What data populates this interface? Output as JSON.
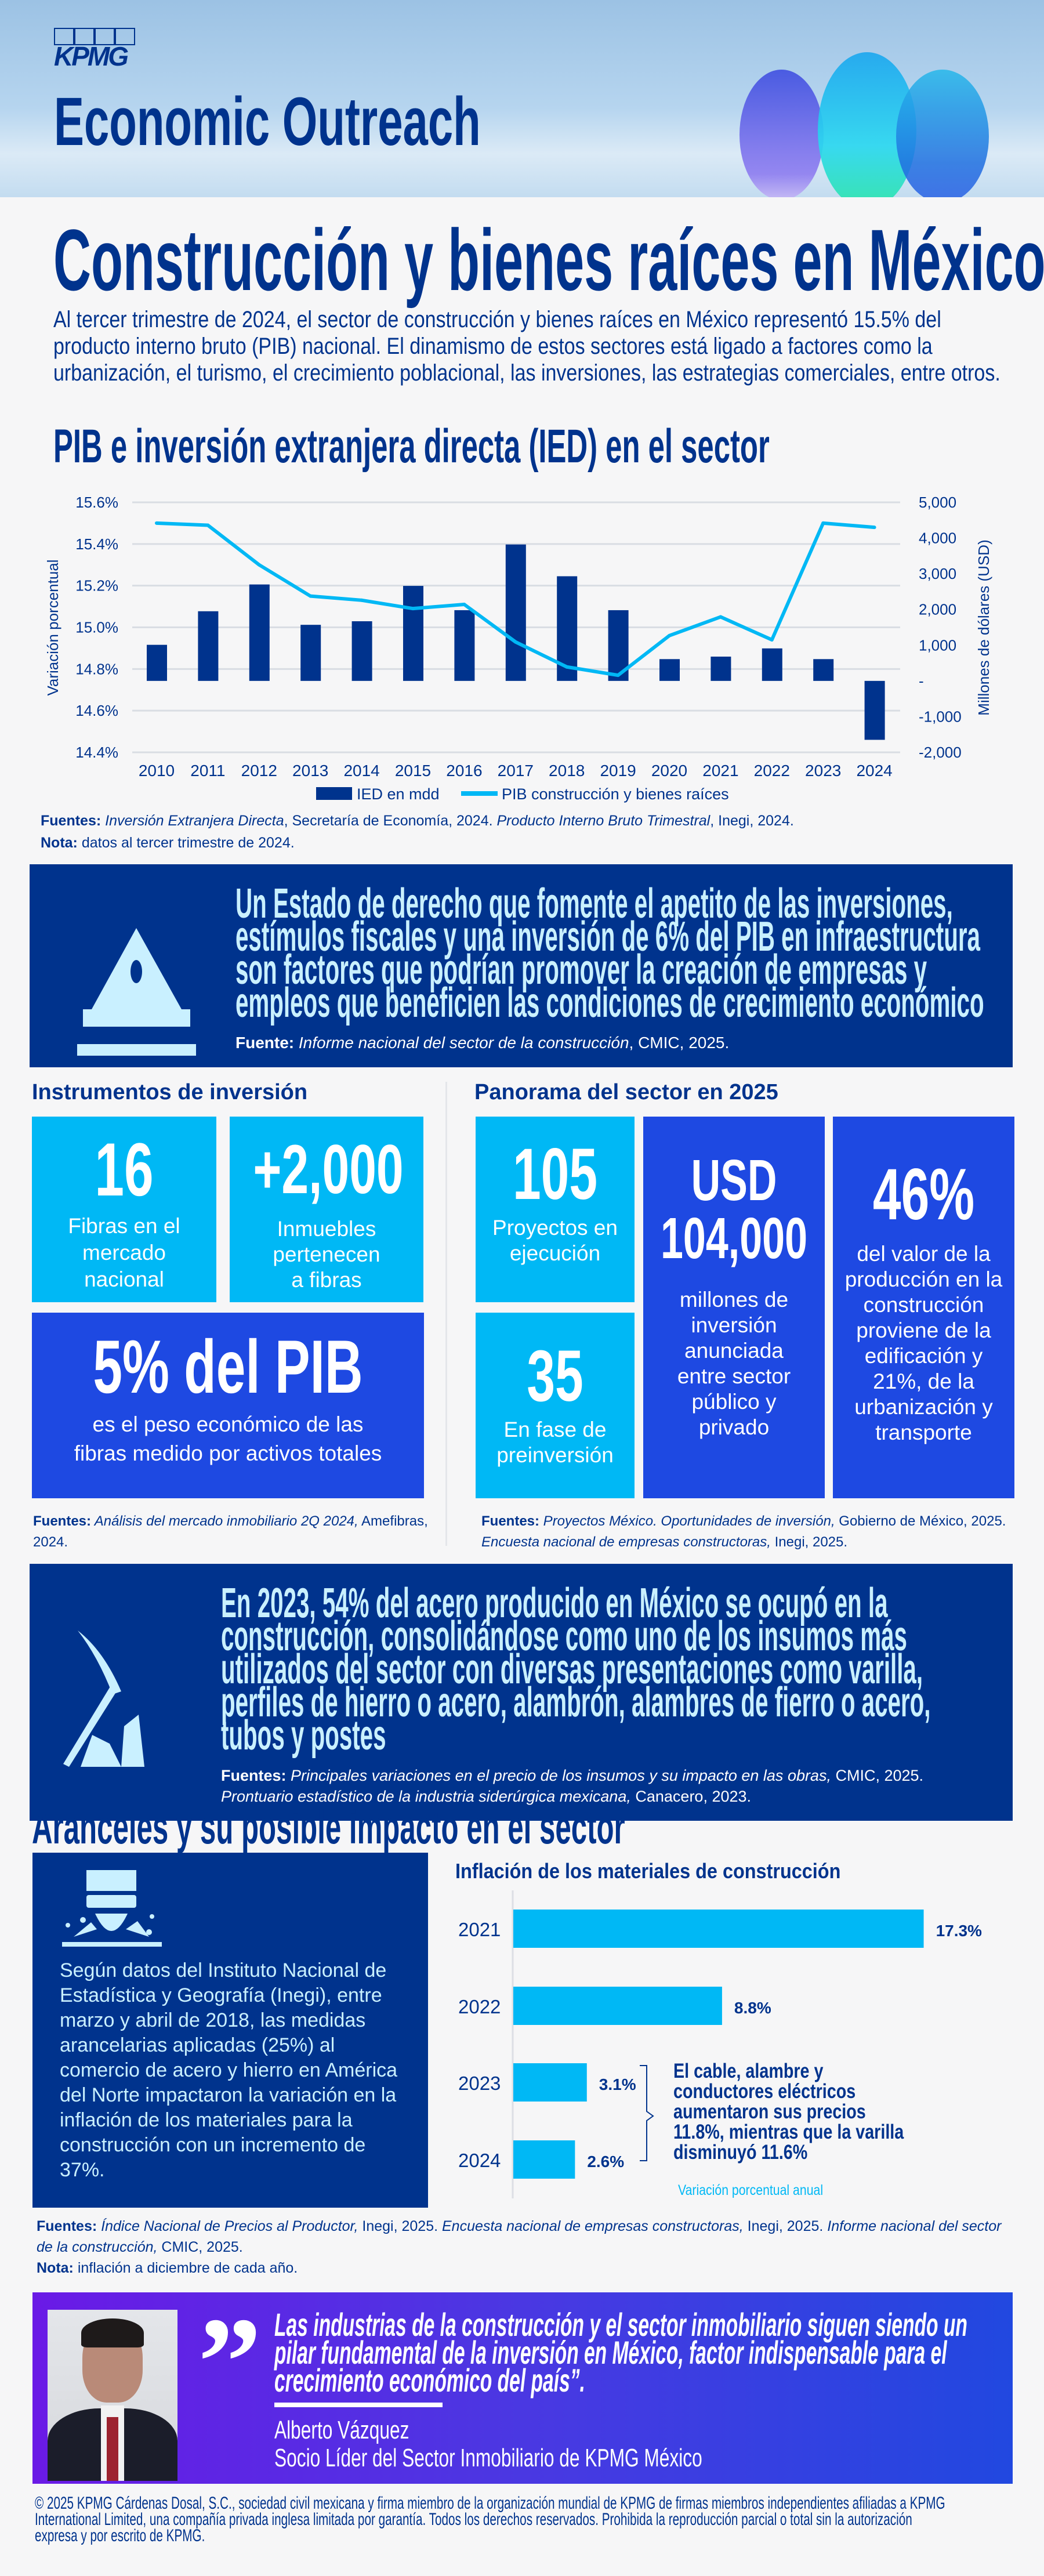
{
  "header": {
    "logo": "KPMG",
    "title": "Economic Outreach"
  },
  "page_title": "Construcción y bienes raíces en México",
  "intro": "Al tercer trimestre de 2024, el sector de construcción y bienes raíces en México representó 15.5% del producto interno bruto (PIB) nacional. El dinamismo de estos sectores está ligado a factores como la urbanización, el turismo, el crecimiento poblacional, las inversiones, las estrategias comerciales, entre otros.",
  "chart_section_title": "PIB e inversión extranjera directa (IED) en el sector",
  "colors": {
    "navy": "#00338d",
    "cyan": "#00b8f5",
    "royal": "#1e49e2",
    "icon_light": "#c9f0ff"
  },
  "chart_data": [
    {
      "type": "bar+line",
      "categories": [
        "2010",
        "2011",
        "2012",
        "2013",
        "2014",
        "2015",
        "2016",
        "2017",
        "2018",
        "2019",
        "2020",
        "2021",
        "2022",
        "2023",
        "2024"
      ],
      "series": [
        {
          "name": "IED en mdd",
          "type": "bar",
          "axis": "right",
          "values": [
            1010,
            1950,
            2700,
            1570,
            1670,
            2660,
            1980,
            3820,
            2930,
            1980,
            610,
            680,
            910,
            610,
            -1650
          ]
        },
        {
          "name": "PIB construcción y bienes raíces",
          "type": "line",
          "axis": "left",
          "values": [
            15.5,
            15.49,
            15.3,
            15.15,
            15.13,
            15.09,
            15.11,
            14.93,
            14.81,
            14.77,
            14.96,
            15.05,
            14.94,
            15.5,
            15.48
          ]
        }
      ],
      "ylabel_left": "Variación porcentual",
      "ylabel_right": "Millones de dólares (USD)",
      "ylim_left": [
        14.4,
        15.6
      ],
      "ylim_right": [
        -2000,
        5000
      ],
      "left_ticks": [
        "15.6%",
        "15.4%",
        "15.2%",
        "15.0%",
        "14.8%",
        "14.6%",
        "14.4%"
      ],
      "right_ticks": [
        "5,000",
        "4,000",
        "3,000",
        "2,000",
        "1,000",
        "-",
        "-1,000",
        "-2,000"
      ],
      "grid": true,
      "legend": "bottom"
    },
    {
      "type": "bar",
      "orientation": "horizontal",
      "title": "Inflación de los materiales de construcción",
      "categories": [
        "2021",
        "2022",
        "2023",
        "2024"
      ],
      "values": [
        17.3,
        8.8,
        3.1,
        2.6
      ],
      "data_labels": [
        "17.3%",
        "8.8%",
        "3.1%",
        "2.6%"
      ],
      "xlabel": "Variación porcentual anual",
      "annotation": "El cable, alambre y conductores eléctricos aumentaron sus precios 11.8%, mientras que la varilla disminuyó 11.6%"
    }
  ],
  "chart_sources": {
    "label": "Fuentes:",
    "s1": "Inversión Extranjera Directa",
    "t1": ", Secretaría de Economía, 2024. ",
    "s2": "Producto Interno Bruto Trimestral",
    "t2": ", Inegi, 2024.",
    "note_label": "Nota:",
    "note": " datos al tercer trimestre de 2024."
  },
  "banner1": {
    "text": "Un Estado de derecho que fomente el apetito de las inversiones, estímulos fiscales y una inversión de 6% del PIB en infraestructura son factores que podrían promover la creación de empresas y empleos que beneficien las condiciones de crecimiento económico",
    "source_label": "Fuente:",
    "source": " Informe nacional del sector de la construcción",
    "source_tail": ", CMIC, 2025."
  },
  "instrumentos": {
    "title": "Instrumentos de inversión",
    "cards": [
      {
        "value": "16",
        "label": "Fibras en el mercado nacional"
      },
      {
        "value": "+2,000",
        "label": "Inmuebles pertenecen a fibras"
      },
      {
        "value": "5% del PIB",
        "label": "es el peso económico de las fibras medido por activos totales"
      }
    ],
    "source_label": "Fuentes:",
    "source": " Análisis del mercado inmobiliario 2Q 2024,",
    "source_tail": " Amefibras, 2024."
  },
  "panorama": {
    "title": "Panorama del sector en 2025",
    "cards": [
      {
        "value": "105",
        "label": "Proyectos en ejecución"
      },
      {
        "value": "35",
        "label": "En fase de preinversión"
      },
      {
        "value": "USD 104,000",
        "label": "millones de inversión anunciada entre sector público y privado"
      },
      {
        "value": "46%",
        "label": "del valor de la producción en la construcción proviene de la edificación y 21%, de la urbanización y transporte"
      }
    ],
    "source_label": "Fuentes:",
    "s1": " Proyectos México. Oportunidades de inversión,",
    "t1": " Gobierno de México, 2025. ",
    "s2": "Encuesta nacional de empresas constructoras,",
    "t2": " Inegi, 2025."
  },
  "banner2": {
    "text": "En 2023, 54% del acero producido en México se ocupó en la construcción, consolidándose como uno de los insumos más utilizados del sector con diversas presentaciones como varilla, perfiles de hierro o acero, alambrón, alambres de fierro o acero, tubos y postes",
    "source_label": "Fuentes:",
    "s1": " Principales variaciones en el precio de los insumos y su impacto en las obras,",
    "t1": " CMIC, 2025.",
    "s2": "Prontuario estadístico de la industria siderúrgica mexicana,",
    "t2": " Canacero, 2023."
  },
  "aranceles": {
    "title": "Aranceles y su posible impacto en el sector",
    "box_text": "Según datos del Instituto Nacional de Estadística y Geografía (Inegi), entre marzo y abril de 2018, las medidas arancelarias aplicadas (25%) al comercio de acero y hierro en América del Norte impactaron la variación en la inflación de los materiales para la construcción con un incremento de 37%.",
    "source_label": "Fuentes:",
    "s1": " Índice Nacional de Precios al Productor,",
    "t1": " Inegi, 2025. ",
    "s2": "Encuesta nacional de empresas constructoras,",
    "t2": " Inegi, 2025. ",
    "s3": "Informe nacional del sector de la construcción,",
    "t3": " CMIC, 2025.",
    "note_label": "Nota:",
    "note": " inflación a diciembre de cada año."
  },
  "quote": {
    "text": "Las industrias de la construcción y el sector inmobiliario siguen siendo un pilar fundamental de la inversión en México, factor indispensable para el crecimiento económico del país”.",
    "name": "Alberto Vázquez",
    "role": "Socio Líder del Sector Inmobiliario de KPMG México"
  },
  "footer": "© 2025 KPMG Cárdenas Dosal, S.C., sociedad civil mexicana y firma miembro de la organización mundial de KPMG de firmas miembros independientes afiliadas a KPMG International Limited, una compañía privada inglesa limitada por garantía. Todos los derechos reservados. Prohibida la reproducción parcial o total sin la autorización expresa y por escrito de KPMG."
}
